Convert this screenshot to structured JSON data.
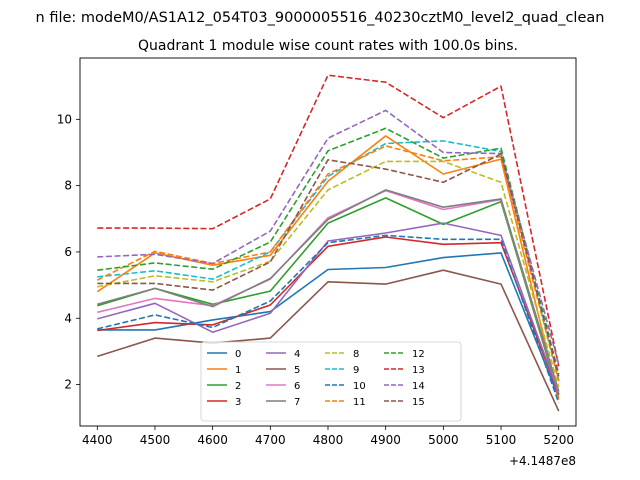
{
  "chart_data": {
    "type": "line",
    "suptitle": "n file: modeM0/AS1A12_054T03_9000005516_40230cztM0_level2_quad_clean",
    "title": "Quadrant 1 module wise count rates with 100.0s bins.",
    "xlabel": "",
    "ylabel": "",
    "x_offset_label": "+4.1487e8",
    "x_tick_labels": [
      "4400",
      "4500",
      "4600",
      "4700",
      "4800",
      "4900",
      "5000",
      "5100",
      "5200"
    ],
    "y_tick_labels": [
      "2",
      "4",
      "6",
      "8",
      "10"
    ],
    "x": [
      4400,
      4500,
      4600,
      4700,
      4800,
      4900,
      5000,
      5100,
      5200
    ],
    "xlim": [
      4370,
      5230
    ],
    "ylim": [
      0.75,
      11.85
    ],
    "legend_position": "lower center",
    "series": [
      {
        "name": "0",
        "color": "#1f77b4",
        "dash": "solid",
        "values": [
          3.65,
          3.65,
          3.95,
          4.2,
          5.47,
          5.53,
          5.83,
          5.97,
          1.6
        ]
      },
      {
        "name": "1",
        "color": "#ff7f0e",
        "dash": "solid",
        "values": [
          4.8,
          5.97,
          5.6,
          5.9,
          8.13,
          9.5,
          8.35,
          8.8,
          1.55
        ]
      },
      {
        "name": "2",
        "color": "#2ca02c",
        "dash": "solid",
        "values": [
          4.38,
          4.9,
          4.42,
          4.82,
          6.87,
          7.63,
          6.83,
          7.52,
          1.68
        ]
      },
      {
        "name": "3",
        "color": "#d62728",
        "dash": "solid",
        "values": [
          3.63,
          3.87,
          3.8,
          4.4,
          6.17,
          6.45,
          6.23,
          6.28,
          1.7
        ]
      },
      {
        "name": "4",
        "color": "#9467bd",
        "dash": "solid",
        "values": [
          3.98,
          4.45,
          3.58,
          4.15,
          6.33,
          6.57,
          6.87,
          6.5,
          1.73
        ]
      },
      {
        "name": "5",
        "color": "#8c564b",
        "dash": "solid",
        "values": [
          2.85,
          3.4,
          3.25,
          3.4,
          5.1,
          5.03,
          5.45,
          5.03,
          1.2
        ]
      },
      {
        "name": "6",
        "color": "#e377c2",
        "dash": "solid",
        "values": [
          4.18,
          4.6,
          4.38,
          5.18,
          7.03,
          7.85,
          7.28,
          7.58,
          1.77
        ]
      },
      {
        "name": "7",
        "color": "#7f7f7f",
        "dash": "solid",
        "values": [
          4.42,
          4.9,
          4.35,
          5.2,
          6.98,
          7.87,
          7.35,
          7.6,
          1.8
        ]
      },
      {
        "name": "8",
        "color": "#bcbd22",
        "dash": "dashed",
        "values": [
          4.95,
          5.28,
          5.1,
          5.72,
          7.87,
          8.73,
          8.73,
          8.1,
          1.92
        ]
      },
      {
        "name": "9",
        "color": "#17becf",
        "dash": "dashed",
        "values": [
          5.25,
          5.43,
          5.18,
          6.0,
          8.28,
          9.27,
          9.35,
          9.03,
          2.15
        ]
      },
      {
        "name": "10",
        "color": "#1f77b4",
        "dash": "dashed",
        "values": [
          3.68,
          4.1,
          3.72,
          4.52,
          6.28,
          6.5,
          6.38,
          6.38,
          1.45
        ]
      },
      {
        "name": "11",
        "color": "#ff7f0e",
        "dash": "dashed",
        "values": [
          5.15,
          6.02,
          5.65,
          6.0,
          8.35,
          9.2,
          8.75,
          8.87,
          2.1
        ]
      },
      {
        "name": "12",
        "color": "#2ca02c",
        "dash": "dashed",
        "values": [
          5.45,
          5.67,
          5.48,
          6.3,
          9.05,
          9.73,
          8.83,
          9.13,
          2.32
        ]
      },
      {
        "name": "13",
        "color": "#d62728",
        "dash": "dashed",
        "values": [
          6.72,
          6.72,
          6.7,
          7.6,
          11.33,
          11.12,
          10.05,
          11.0,
          2.55
        ]
      },
      {
        "name": "14",
        "color": "#9467bd",
        "dash": "dashed",
        "values": [
          5.85,
          5.93,
          5.65,
          6.63,
          9.43,
          10.27,
          9.0,
          8.97,
          2.62
        ]
      },
      {
        "name": "15",
        "color": "#8c564b",
        "dash": "dashed",
        "values": [
          5.05,
          5.05,
          4.85,
          5.7,
          8.78,
          8.5,
          8.1,
          8.95,
          2.25
        ]
      }
    ]
  }
}
